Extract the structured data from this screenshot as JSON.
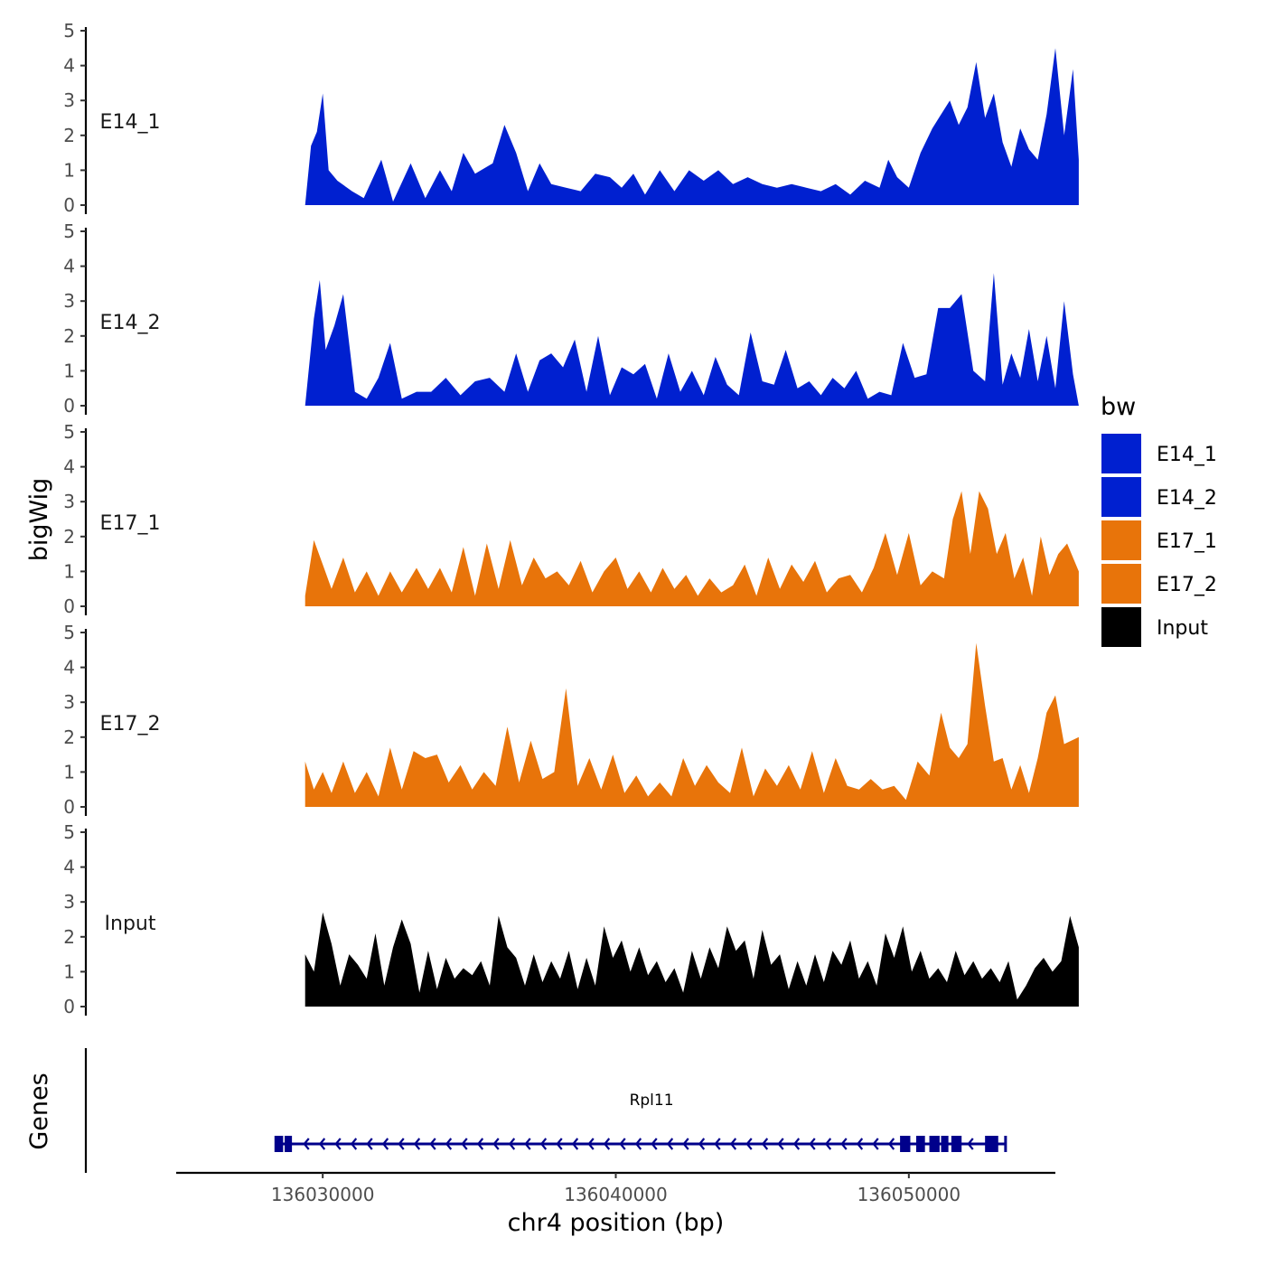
{
  "chart_data": {
    "type": "area",
    "chromosome": "chr4",
    "xlabel": "chr4 position (bp)",
    "ylabel": "bigWig",
    "genes_label": "Genes",
    "xlim": [
      136025000,
      136055000
    ],
    "xticks": [
      136030000,
      136040000,
      136050000
    ],
    "xtick_labels": [
      "136030000",
      "136040000",
      "136050000"
    ],
    "ylim": [
      0,
      5
    ],
    "yticks": [
      0,
      1,
      2,
      3,
      4,
      5
    ],
    "ytick_labels": [
      "0",
      "1",
      "2",
      "3",
      "4",
      "5"
    ],
    "legend": {
      "title": "bw",
      "position": "right",
      "entries": [
        {
          "label": "E14_1",
          "color": "#0020D0"
        },
        {
          "label": "E14_2",
          "color": "#0020D0"
        },
        {
          "label": "E17_1",
          "color": "#E8740A"
        },
        {
          "label": "E17_2",
          "color": "#E8740A"
        },
        {
          "label": "Input",
          "color": "#000000"
        }
      ]
    },
    "series": [
      {
        "name": "E14_1",
        "color": "#0020D0",
        "x": [
          136029400,
          136029600,
          136029800,
          136030000,
          136030200,
          136030500,
          136031000,
          136031400,
          136032000,
          136032400,
          136033000,
          136033500,
          136034000,
          136034400,
          136034800,
          136035200,
          136035800,
          136036200,
          136036600,
          136037000,
          136037400,
          136037800,
          136038300,
          136038800,
          136039300,
          136039800,
          136040200,
          136040600,
          136041000,
          136041500,
          136042000,
          136042500,
          136043000,
          136043500,
          136044000,
          136044500,
          136045000,
          136045500,
          136046000,
          136046500,
          136047000,
          136047500,
          136048000,
          136048500,
          136049000,
          136049300,
          136049600,
          136050000,
          136050400,
          136050800,
          136051100,
          136051400,
          136051700,
          136052000,
          136052300,
          136052600,
          136052900,
          136053200,
          136053500,
          136053800,
          136054100,
          136054400,
          136054700,
          136055000,
          136055300,
          136055600,
          136055800
        ],
        "values": [
          0,
          1.7,
          2.1,
          3.2,
          1.0,
          0.7,
          0.4,
          0.2,
          1.3,
          0.1,
          1.2,
          0.2,
          1.0,
          0.4,
          1.5,
          0.9,
          1.2,
          2.3,
          1.5,
          0.4,
          1.2,
          0.6,
          0.5,
          0.4,
          0.9,
          0.8,
          0.5,
          0.9,
          0.3,
          1.0,
          0.4,
          1.0,
          0.7,
          1.0,
          0.6,
          0.8,
          0.6,
          0.5,
          0.6,
          0.5,
          0.4,
          0.6,
          0.3,
          0.7,
          0.5,
          1.3,
          0.8,
          0.5,
          1.5,
          2.2,
          2.6,
          3.0,
          2.3,
          2.8,
          4.1,
          2.5,
          3.2,
          1.8,
          1.1,
          2.2,
          1.6,
          1.3,
          2.6,
          4.5,
          2.0,
          3.9,
          1.3
        ]
      },
      {
        "name": "E14_2",
        "color": "#0020D0",
        "x": [
          136029400,
          136029700,
          136029900,
          136030100,
          136030400,
          136030700,
          136031100,
          136031500,
          136031900,
          136032300,
          136032700,
          136033200,
          136033700,
          136034200,
          136034700,
          136035200,
          136035700,
          136036200,
          136036600,
          136037000,
          136037400,
          136037800,
          136038200,
          136038600,
          136039000,
          136039400,
          136039800,
          136040200,
          136040600,
          136041000,
          136041400,
          136041800,
          136042200,
          136042600,
          136043000,
          136043400,
          136043800,
          136044200,
          136044600,
          136045000,
          136045400,
          136045800,
          136046200,
          136046600,
          136047000,
          136047400,
          136047800,
          136048200,
          136048600,
          136049000,
          136049400,
          136049800,
          136050200,
          136050600,
          136051000,
          136051400,
          136051800,
          136052200,
          136052600,
          136052900,
          136053200,
          136053500,
          136053800,
          136054100,
          136054400,
          136054700,
          136055000,
          136055300,
          136055600,
          136055800
        ],
        "values": [
          0,
          2.5,
          3.6,
          1.6,
          2.3,
          3.2,
          0.4,
          0.2,
          0.8,
          1.8,
          0.2,
          0.4,
          0.4,
          0.8,
          0.3,
          0.7,
          0.8,
          0.4,
          1.5,
          0.4,
          1.3,
          1.5,
          1.1,
          1.9,
          0.4,
          2.0,
          0.3,
          1.1,
          0.9,
          1.2,
          0.2,
          1.5,
          0.4,
          1.0,
          0.3,
          1.4,
          0.6,
          0.3,
          2.1,
          0.7,
          0.6,
          1.6,
          0.5,
          0.7,
          0.3,
          0.8,
          0.5,
          1.0,
          0.2,
          0.4,
          0.3,
          1.8,
          0.8,
          0.9,
          2.8,
          2.8,
          3.2,
          1.0,
          0.7,
          3.8,
          0.6,
          1.5,
          0.8,
          2.2,
          0.7,
          2.0,
          0.5,
          3.0,
          0.9,
          0
        ]
      },
      {
        "name": "E17_1",
        "color": "#E8740A",
        "x": [
          136029400,
          136029700,
          136030000,
          136030300,
          136030700,
          136031100,
          136031500,
          136031900,
          136032300,
          136032700,
          136033200,
          136033600,
          136034000,
          136034400,
          136034800,
          136035200,
          136035600,
          136036000,
          136036400,
          136036800,
          136037200,
          136037600,
          136038000,
          136038400,
          136038800,
          136039200,
          136039600,
          136040000,
          136040400,
          136040800,
          136041200,
          136041600,
          136042000,
          136042400,
          136042800,
          136043200,
          136043600,
          136044000,
          136044400,
          136044800,
          136045200,
          136045600,
          136046000,
          136046400,
          136046800,
          136047200,
          136047600,
          136048000,
          136048400,
          136048800,
          136049200,
          136049600,
          136050000,
          136050400,
          136050800,
          136051200,
          136051500,
          136051800,
          136052100,
          136052400,
          136052700,
          136053000,
          136053300,
          136053600,
          136053900,
          136054200,
          136054500,
          136054800,
          136055100,
          136055400,
          136055800
        ],
        "values": [
          0.3,
          1.9,
          1.2,
          0.5,
          1.4,
          0.4,
          1.0,
          0.3,
          1.0,
          0.4,
          1.1,
          0.5,
          1.1,
          0.4,
          1.7,
          0.3,
          1.8,
          0.5,
          1.9,
          0.6,
          1.4,
          0.8,
          1.0,
          0.6,
          1.3,
          0.4,
          1.0,
          1.4,
          0.5,
          1.0,
          0.4,
          1.1,
          0.5,
          0.9,
          0.3,
          0.8,
          0.4,
          0.6,
          1.2,
          0.3,
          1.4,
          0.5,
          1.2,
          0.7,
          1.3,
          0.4,
          0.8,
          0.9,
          0.4,
          1.1,
          2.1,
          0.9,
          2.1,
          0.6,
          1.0,
          0.8,
          2.5,
          3.3,
          1.5,
          3.3,
          2.8,
          1.5,
          2.1,
          0.8,
          1.4,
          0.3,
          2.0,
          0.9,
          1.5,
          1.8,
          1.0
        ]
      },
      {
        "name": "E17_2",
        "color": "#E8740A",
        "x": [
          136029400,
          136029700,
          136030000,
          136030300,
          136030700,
          136031100,
          136031500,
          136031900,
          136032300,
          136032700,
          136033100,
          136033500,
          136033900,
          136034300,
          136034700,
          136035100,
          136035500,
          136035900,
          136036300,
          136036700,
          136037100,
          136037500,
          136037900,
          136038300,
          136038700,
          136039100,
          136039500,
          136039900,
          136040300,
          136040700,
          136041100,
          136041500,
          136041900,
          136042300,
          136042700,
          136043100,
          136043500,
          136043900,
          136044300,
          136044700,
          136045100,
          136045500,
          136045900,
          136046300,
          136046700,
          136047100,
          136047500,
          136047900,
          136048300,
          136048700,
          136049100,
          136049500,
          136049900,
          136050300,
          136050700,
          136051100,
          136051400,
          136051700,
          136052000,
          136052300,
          136052600,
          136052900,
          136053200,
          136053500,
          136053800,
          136054100,
          136054400,
          136054700,
          136055000,
          136055300,
          136055800
        ],
        "values": [
          1.3,
          0.5,
          1.0,
          0.4,
          1.3,
          0.4,
          1.0,
          0.3,
          1.7,
          0.5,
          1.6,
          1.4,
          1.5,
          0.7,
          1.2,
          0.5,
          1.0,
          0.6,
          2.3,
          0.7,
          1.9,
          0.8,
          1.0,
          3.4,
          0.6,
          1.4,
          0.5,
          1.5,
          0.4,
          0.9,
          0.3,
          0.7,
          0.3,
          1.4,
          0.6,
          1.2,
          0.7,
          0.4,
          1.7,
          0.3,
          1.1,
          0.6,
          1.2,
          0.5,
          1.6,
          0.4,
          1.4,
          0.6,
          0.5,
          0.8,
          0.5,
          0.6,
          0.2,
          1.3,
          0.9,
          2.7,
          1.7,
          1.4,
          1.8,
          4.7,
          2.9,
          1.3,
          1.4,
          0.5,
          1.2,
          0.4,
          1.4,
          2.7,
          3.2,
          1.8,
          2.0
        ]
      },
      {
        "name": "Input",
        "color": "#000000",
        "x": [
          136029400,
          136029700,
          136030000,
          136030300,
          136030600,
          136030900,
          136031200,
          136031500,
          136031800,
          136032100,
          136032400,
          136032700,
          136033000,
          136033300,
          136033600,
          136033900,
          136034200,
          136034500,
          136034800,
          136035100,
          136035400,
          136035700,
          136036000,
          136036300,
          136036600,
          136036900,
          136037200,
          136037500,
          136037800,
          136038100,
          136038400,
          136038700,
          136039000,
          136039300,
          136039600,
          136039900,
          136040200,
          136040500,
          136040800,
          136041100,
          136041400,
          136041700,
          136042000,
          136042300,
          136042600,
          136042900,
          136043200,
          136043500,
          136043800,
          136044100,
          136044400,
          136044700,
          136045000,
          136045300,
          136045600,
          136045900,
          136046200,
          136046500,
          136046800,
          136047100,
          136047400,
          136047700,
          136048000,
          136048300,
          136048600,
          136048900,
          136049200,
          136049500,
          136049800,
          136050100,
          136050400,
          136050700,
          136051000,
          136051300,
          136051600,
          136051900,
          136052200,
          136052500,
          136052800,
          136053100,
          136053400,
          136053700,
          136054000,
          136054300,
          136054600,
          136054900,
          136055200,
          136055500,
          136055800
        ],
        "values": [
          1.5,
          1.0,
          2.7,
          1.8,
          0.6,
          1.5,
          1.2,
          0.8,
          2.1,
          0.6,
          1.7,
          2.5,
          1.8,
          0.4,
          1.6,
          0.5,
          1.4,
          0.8,
          1.1,
          0.9,
          1.3,
          0.6,
          2.6,
          1.7,
          1.4,
          0.6,
          1.5,
          0.7,
          1.3,
          0.8,
          1.6,
          0.5,
          1.4,
          0.6,
          2.3,
          1.4,
          1.9,
          1.0,
          1.7,
          0.9,
          1.3,
          0.7,
          1.1,
          0.4,
          1.6,
          0.8,
          1.7,
          1.1,
          2.3,
          1.6,
          1.9,
          0.8,
          2.2,
          1.2,
          1.5,
          0.5,
          1.3,
          0.6,
          1.5,
          0.7,
          1.6,
          1.2,
          1.9,
          0.8,
          1.3,
          0.6,
          2.1,
          1.4,
          2.3,
          1.0,
          1.6,
          0.8,
          1.1,
          0.7,
          1.6,
          0.9,
          1.3,
          0.8,
          1.1,
          0.7,
          1.3,
          0.2,
          0.6,
          1.1,
          1.4,
          1.0,
          1.3,
          2.6,
          1.7
        ]
      }
    ],
    "gene_track": {
      "gene": "Rpl11",
      "color": "#00008B",
      "strand": "-",
      "start": 136028400,
      "end": 136053300,
      "exons": [
        {
          "start": 136028400,
          "end": 136028650
        },
        {
          "start": 136028700,
          "end": 136028950
        },
        {
          "start": 136049700,
          "end": 136050050
        },
        {
          "start": 136050250,
          "end": 136050550
        },
        {
          "start": 136050700,
          "end": 136051050
        },
        {
          "start": 136051100,
          "end": 136051350
        },
        {
          "start": 136051450,
          "end": 136051800
        },
        {
          "start": 136052600,
          "end": 136053050
        }
      ]
    }
  }
}
